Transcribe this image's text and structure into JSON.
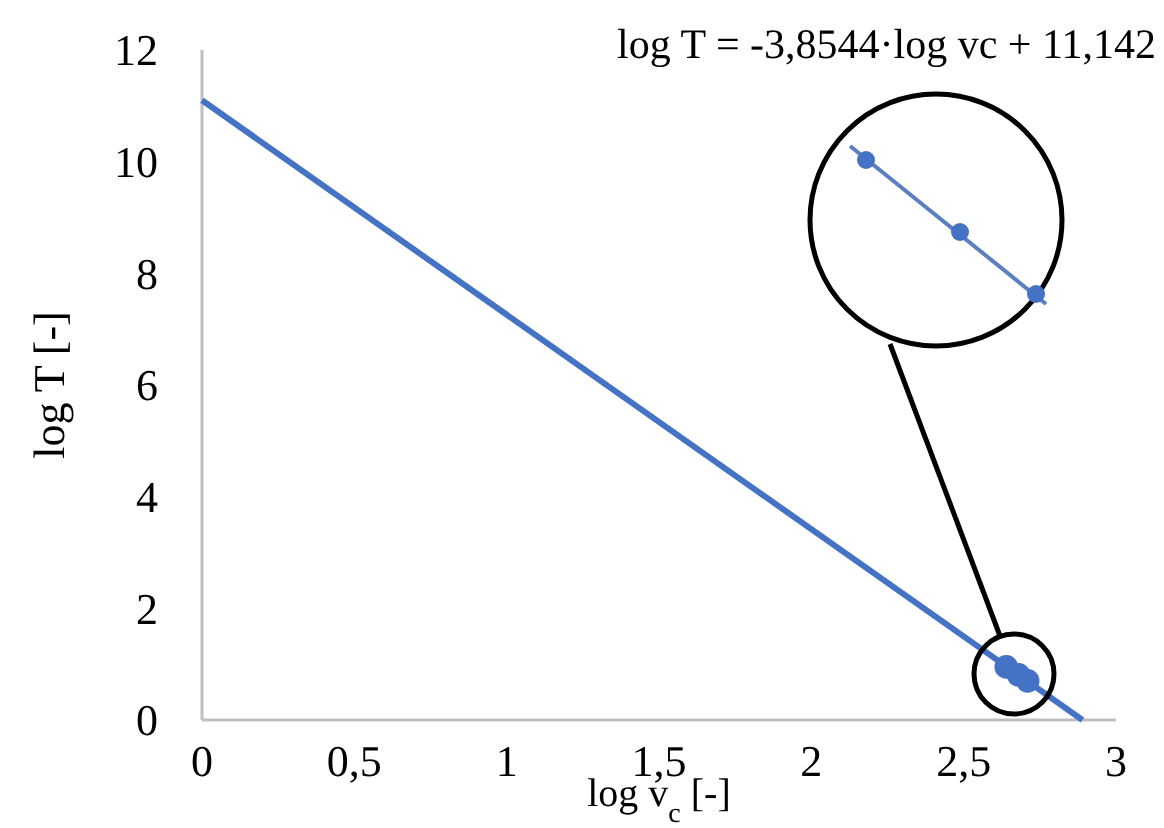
{
  "chart_data": {
    "type": "scatter",
    "xlabel": "log v$_{c}$ [-]",
    "ylabel": "log T [-]",
    "annotations": [
      "log T = -3,8544·log vc  + 11,142"
    ],
    "xlim": [
      0,
      3
    ],
    "ylim": [
      0,
      12
    ],
    "xticks": [
      0,
      {
        "value": 0.5,
        "label": "0,5"
      },
      1,
      {
        "value": 1.5,
        "label": "1,5"
      },
      2,
      {
        "value": 2.5,
        "label": "2,5"
      },
      3
    ],
    "yticks": [
      0,
      2,
      4,
      6,
      8,
      10,
      12
    ],
    "grid": false,
    "marker": "circle",
    "series": [
      {
        "type": "line",
        "color": "#4472c4",
        "x": [
          0,
          2.89
        ],
        "values": [
          11.1,
          0
        ],
        "line_style": "solid",
        "marker": "none"
      },
      {
        "type": "scatter",
        "color": "#4472c4",
        "x": [
          2.64,
          2.68,
          2.71
        ],
        "values": [
          0.95,
          0.81,
          0.7
        ]
      }
    ]
  }
}
